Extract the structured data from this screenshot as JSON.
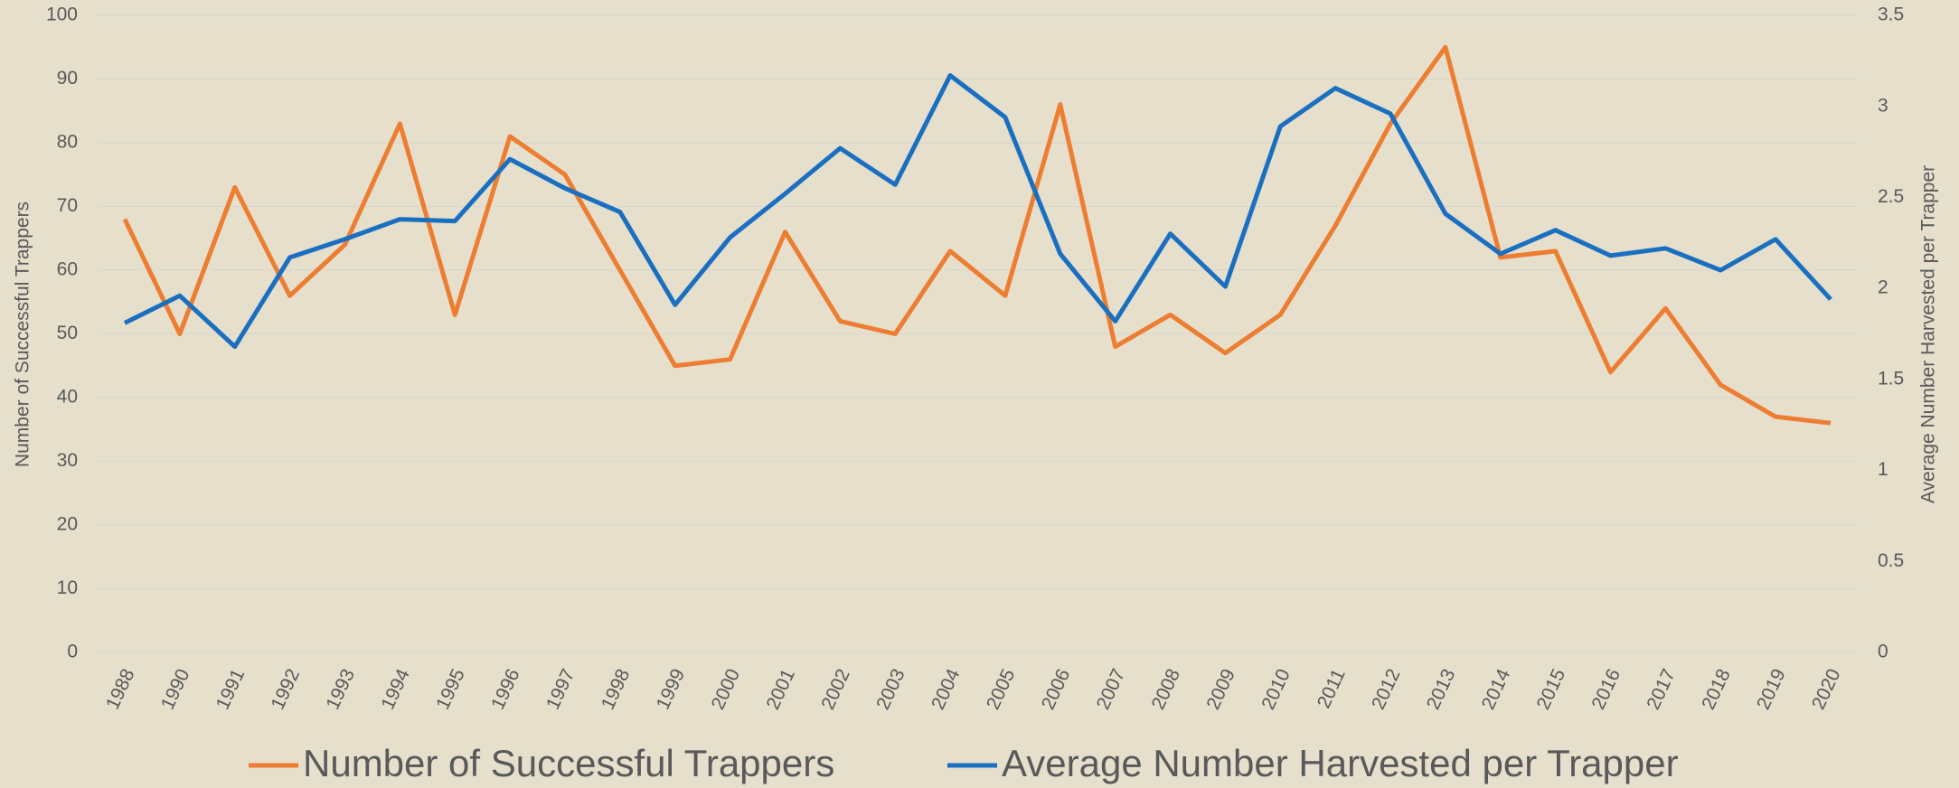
{
  "chart_data": {
    "type": "line",
    "y_label": "Number of Successful Trappers",
    "y2_label": "Average Number Harvested per Trapper",
    "categories": [
      "1988",
      "1990",
      "1991",
      "1992",
      "1993",
      "1994",
      "1995",
      "1996",
      "1997",
      "1998",
      "1999",
      "2000",
      "2001",
      "2002",
      "2003",
      "2004",
      "2005",
      "2006",
      "2007",
      "2008",
      "2009",
      "2010",
      "2011",
      "2012",
      "2013",
      "2014",
      "2015",
      "2016",
      "2017",
      "2018",
      "2019",
      "2020"
    ],
    "series": [
      {
        "name": "Number of Successful Trappers",
        "color": "#ed7d31",
        "values": [
          68,
          50,
          73,
          56,
          64,
          83,
          53,
          81,
          75,
          60,
          45,
          46,
          66,
          52,
          50,
          63,
          56,
          86,
          48,
          53,
          47,
          53,
          67,
          83,
          95,
          62,
          63,
          44,
          54,
          42,
          37,
          36
        ]
      },
      {
        "name": "Average Number Harvested per Trapper",
        "color": "#1a6fc1",
        "axis": "y2",
        "values": [
          1.81,
          1.96,
          1.68,
          2.17,
          2.27,
          2.38,
          2.37,
          2.71,
          2.55,
          2.42,
          1.91,
          2.28,
          2.52,
          2.77,
          2.57,
          3.17,
          2.94,
          2.19,
          1.82,
          2.3,
          2.01,
          2.89,
          3.1,
          2.96,
          2.41,
          2.19,
          2.32,
          2.18,
          2.22,
          2.1,
          2.27,
          1.94
        ]
      }
    ],
    "ylim": [
      0,
      100
    ],
    "yticks": [
      0,
      10,
      20,
      30,
      40,
      50,
      60,
      70,
      80,
      90,
      100
    ],
    "y2lim": [
      0,
      3.5
    ],
    "y2ticks": [
      0,
      0.5,
      1,
      1.5,
      2,
      2.5,
      3,
      3.5
    ],
    "grid": true,
    "legend": "bottom"
  }
}
